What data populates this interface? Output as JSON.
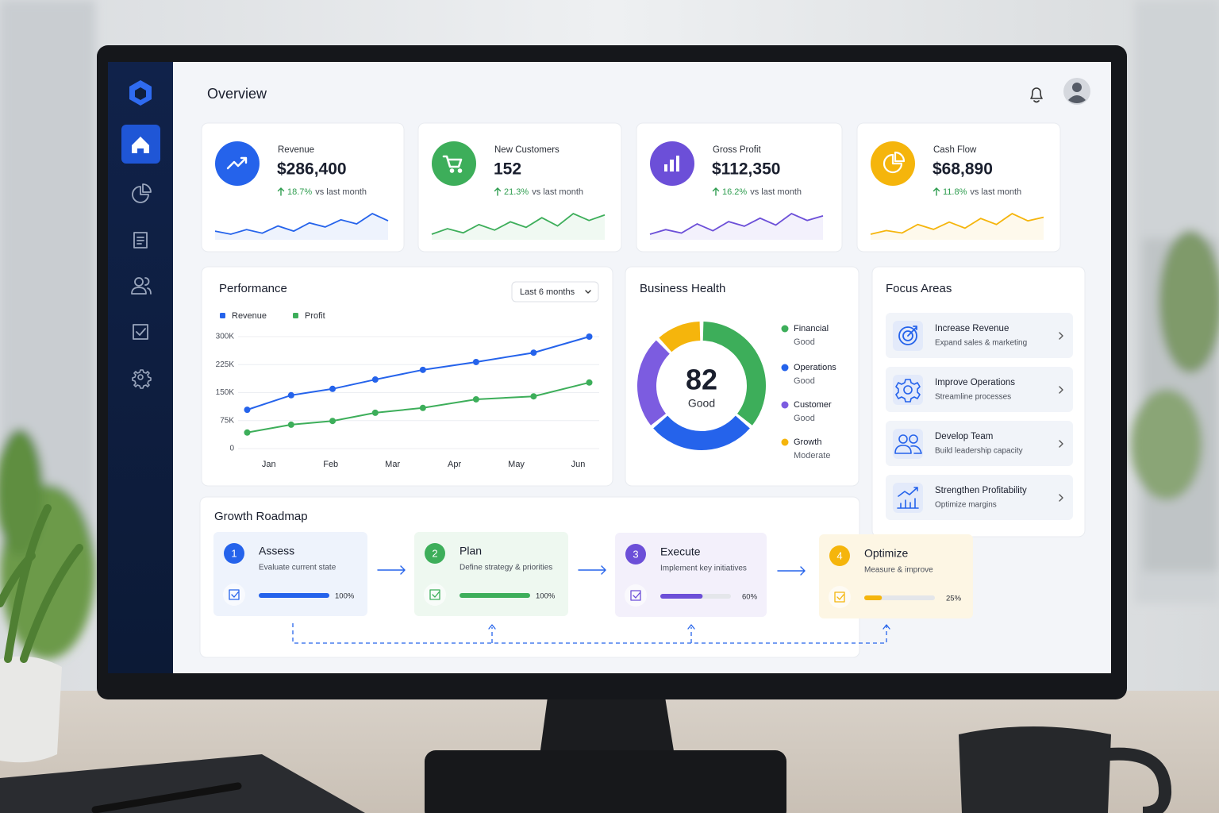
{
  "header": {
    "title": "Overview"
  },
  "kpis": [
    {
      "label": "Revenue",
      "value": "$286,400",
      "change": "18.7%",
      "note": "vs last month",
      "color": "#2563eb",
      "sparkline": [
        30,
        24,
        33,
        26,
        40,
        30,
        46,
        38,
        52,
        44,
        64,
        50
      ]
    },
    {
      "label": "New Customers",
      "value": "152",
      "change": "21.3%",
      "note": "vs last month",
      "color": "#3dae5a",
      "sparkline": [
        28,
        36,
        30,
        42,
        34,
        46,
        38,
        52,
        40,
        58,
        48,
        56
      ]
    },
    {
      "label": "Gross Profit",
      "value": "$112,350",
      "change": "16.2%",
      "note": "vs last month",
      "color": "#6c4fd8",
      "sparkline": [
        26,
        34,
        28,
        44,
        32,
        48,
        40,
        54,
        42,
        62,
        50,
        58
      ]
    },
    {
      "label": "Cash Flow",
      "value": "$68,890",
      "change": "11.8%",
      "note": "vs last month",
      "color": "#f5b50c",
      "sparkline": [
        28,
        34,
        30,
        44,
        36,
        48,
        38,
        54,
        44,
        62,
        50,
        56
      ]
    }
  ],
  "performance": {
    "type": "line",
    "title": "Performance",
    "period": "Last 6 months",
    "x": [
      0.65,
      1.36,
      2.03,
      2.72,
      3.49,
      4.35,
      5.28,
      6.18
    ],
    "xlim": [
      0.4,
      6.34
    ],
    "xticks": [
      {
        "value": 1,
        "label": "Jan"
      },
      {
        "value": 2,
        "label": "Feb"
      },
      {
        "value": 3,
        "label": "Mar"
      },
      {
        "value": 4,
        "label": "Apr"
      },
      {
        "value": 5,
        "label": "May"
      },
      {
        "value": 6,
        "label": "Jun"
      }
    ],
    "ylim": [
      0,
      300
    ],
    "yticks": [
      0,
      {
        "value": 75,
        "label": "75K"
      },
      {
        "value": 150,
        "label": "150K"
      },
      {
        "value": 225,
        "label": "225K"
      },
      {
        "value": 300,
        "label": "300K"
      }
    ],
    "grid": true,
    "series": [
      {
        "name": "Revenue",
        "color": "#2563eb",
        "values": [
          104,
          143,
          160,
          185,
          211,
          232,
          257,
          300
        ]
      },
      {
        "name": "Profit",
        "color": "#3dae5a",
        "values": [
          43,
          64,
          74,
          96,
          109,
          132,
          140,
          177
        ]
      }
    ]
  },
  "health": {
    "title": "Business Health",
    "score": 82,
    "rating": "Good",
    "segments": [
      {
        "name": "Financial",
        "status": "Good",
        "color": "#3dae5a",
        "value": 36
      },
      {
        "name": "Operations",
        "status": "Good",
        "color": "#2563eb",
        "value": 28
      },
      {
        "name": "Customer",
        "status": "Good",
        "color": "#7c5ce0",
        "value": 24
      },
      {
        "name": "Growth",
        "status": "Moderate",
        "color": "#f5b50c",
        "value": 12
      }
    ]
  },
  "focus": {
    "title": "Focus Areas",
    "items": [
      {
        "title": "Increase Revenue",
        "subtitle": "Expand sales & marketing"
      },
      {
        "title": "Improve Operations",
        "subtitle": "Streamline processes"
      },
      {
        "title": "Develop Team",
        "subtitle": "Build leadership capacity"
      },
      {
        "title": "Strengthen Profitability",
        "subtitle": "Optimize margins"
      }
    ]
  },
  "roadmap": {
    "title": "Growth Roadmap",
    "steps": [
      {
        "number": 1,
        "name": "Assess",
        "description": "Evaluate current state",
        "progress": 100,
        "progress_label": "100%",
        "color": "#2563eb",
        "background": "#eef3fc"
      },
      {
        "number": 2,
        "name": "Plan",
        "description": "Define strategy & priorities",
        "progress": 100,
        "progress_label": "100%",
        "color": "#3dae5a",
        "background": "#eef8f0"
      },
      {
        "number": 3,
        "name": "Execute",
        "description": "Implement key initiatives",
        "progress": 60,
        "progress_label": "60%",
        "color": "#6c4fd8",
        "background": "#f3f0fb"
      },
      {
        "number": 4,
        "name": "Optimize",
        "description": "Measure & improve",
        "progress": 25,
        "progress_label": "25%",
        "color": "#f5b50c",
        "background": "#fdf6e4"
      }
    ]
  }
}
